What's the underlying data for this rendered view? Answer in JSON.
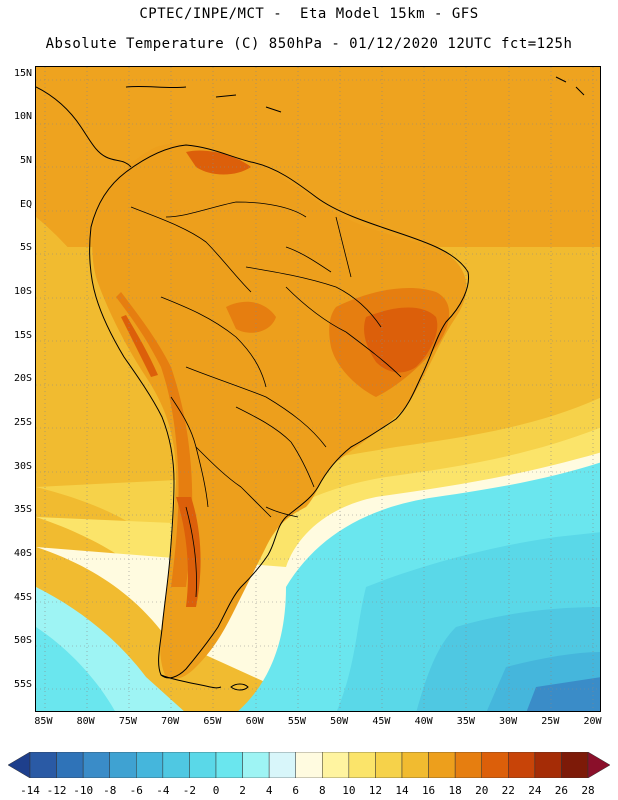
{
  "header": {
    "line1": "CPTEC/INPE/MCT -  Eta Model 15km - GFS",
    "line2": "Absolute Temperature (C) 850hPa - 01/12/2020 12UTC fct=125h"
  },
  "map": {
    "lat_labels": [
      "15N",
      "10N",
      "5N",
      "EQ",
      "5S",
      "10S",
      "15S",
      "20S",
      "25S",
      "30S",
      "35S",
      "40S",
      "45S",
      "50S",
      "55S"
    ],
    "lon_labels": [
      "85W",
      "80W",
      "75W",
      "70W",
      "65W",
      "60W",
      "55W",
      "50W",
      "45W",
      "40W",
      "35W",
      "30W",
      "25W",
      "20W"
    ],
    "lat_values": [
      15,
      10,
      5,
      0,
      -5,
      -10,
      -15,
      -20,
      -25,
      -30,
      -35,
      -40,
      -45,
      -50,
      -55
    ],
    "lon_values": [
      -85,
      -80,
      -75,
      -70,
      -65,
      -60,
      -55,
      -50,
      -45,
      -40,
      -35,
      -30,
      -25,
      -20
    ],
    "lat_range": [
      -58,
      16
    ],
    "lon_range": [
      -86,
      -19
    ],
    "gridlines": "dotted",
    "field": "Absolute Temperature 850hPa",
    "units": "C"
  },
  "legend": {
    "levels": [
      "-14",
      "-12",
      "-10",
      "-8",
      "-6",
      "-4",
      "-2",
      "0",
      "2",
      "4",
      "6",
      "8",
      "10",
      "12",
      "14",
      "16",
      "18",
      "20",
      "22",
      "24",
      "26",
      "28"
    ],
    "colors": [
      "#1e3f8c",
      "#2a5aa5",
      "#2f73b8",
      "#3a8cc8",
      "#3fa2d2",
      "#45b6dc",
      "#4fc8e2",
      "#5ad8e8",
      "#6ae6ee",
      "#9ef4f4",
      "#d8f6fa",
      "#fffbe0",
      "#fff4a0",
      "#fbe46a",
      "#f6d24a",
      "#f1bb30",
      "#ed9f1c",
      "#e67e10",
      "#dc5f0a",
      "#c84408",
      "#a52c06",
      "#7d1a08",
      "#8a0f2a"
    ]
  }
}
